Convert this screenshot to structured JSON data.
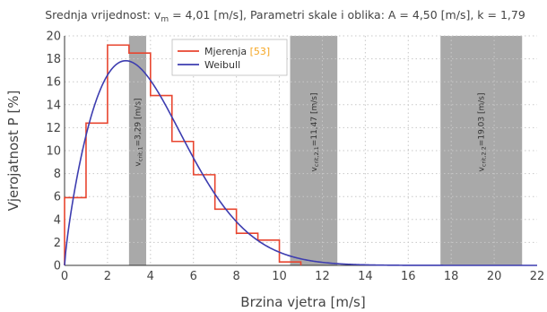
{
  "chart_data": {
    "type": "histogram+line",
    "title": {
      "prefix": "Srednja vrijednost: v",
      "prefix_sub": "m",
      "rest": " = 4,01 [m/s], Parametri skale i oblika: A = 4,50 [m/s], k = 1,79"
    },
    "xlabel": "Brzina vjetra [m/s]",
    "ylabel": "Vjerojatnost P [%]",
    "xlim": [
      0,
      22
    ],
    "ylim": [
      0,
      20
    ],
    "xticks": [
      "0",
      "2",
      "4",
      "6",
      "8",
      "10",
      "12",
      "14",
      "16",
      "18",
      "20",
      "22"
    ],
    "yticks": [
      "0",
      "2",
      "4",
      "6",
      "8",
      "10",
      "12",
      "14",
      "16",
      "18",
      "20"
    ],
    "grid": true,
    "legend": {
      "position": "top-center",
      "entries": [
        {
          "name": "Mjerenja",
          "suffix": "[53]",
          "color": "#e8452f",
          "suffix_color": "#f5a623"
        },
        {
          "name": "Weibull",
          "color": "#3d3db0"
        }
      ]
    },
    "bands": [
      {
        "x": [
          3,
          3.8
        ],
        "label": "v",
        "sub": "crit,1",
        "value": "=3,29 [m/s]"
      },
      {
        "x": [
          10.5,
          12.7
        ],
        "label": "v",
        "sub": "crit,2,1",
        "value": "=11,47 [m/s]"
      },
      {
        "x": [
          17.5,
          21.3
        ],
        "label": "v",
        "sub": "crit,2,2",
        "value": "=19,03 [m/s]"
      }
    ],
    "band_color": "#a9a9a9",
    "series": [
      {
        "name": "Mjerenja",
        "kind": "step",
        "color": "#e8452f",
        "bin_edges": [
          0,
          1,
          2,
          3,
          4,
          5,
          6,
          7,
          8,
          9,
          10,
          11
        ],
        "values": [
          5.9,
          12.4,
          19.2,
          18.5,
          14.8,
          10.8,
          7.9,
          4.9,
          2.8,
          2.2,
          0.3
        ]
      },
      {
        "name": "Weibull",
        "kind": "weibull",
        "color": "#3d3db0",
        "A": 4.5,
        "k": 1.79
      }
    ]
  }
}
